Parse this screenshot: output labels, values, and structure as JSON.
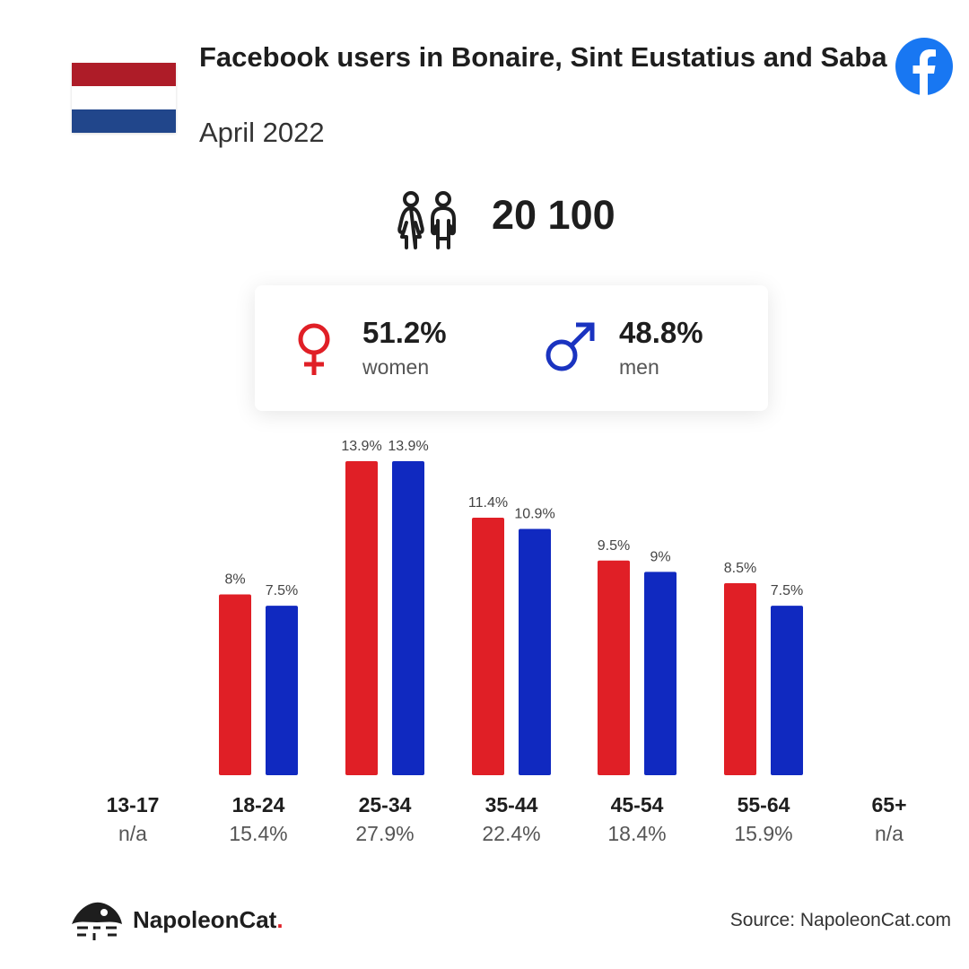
{
  "header": {
    "title": "Facebook users in Bonaire, Sint Eustatius and Saba",
    "subtitle": "April 2022",
    "flag_colors": [
      "#ae1c28",
      "#ffffff",
      "#21468b"
    ],
    "logo_icon": "facebook-icon",
    "logo_color": "#1877f2"
  },
  "total": {
    "icon": "users-icon",
    "value": "20 100"
  },
  "gender": {
    "women": {
      "icon": "female-icon",
      "percent": "51.2%",
      "label": "women",
      "color": "#e01f26"
    },
    "men": {
      "icon": "male-icon",
      "percent": "48.8%",
      "label": "men",
      "color": "#1a33c0"
    }
  },
  "chart_data": {
    "type": "bar",
    "categories": [
      "13-17",
      "18-24",
      "25-34",
      "35-44",
      "45-54",
      "55-64",
      "65+"
    ],
    "category_shares": [
      "n/a",
      "15.4%",
      "27.9%",
      "22.4%",
      "18.4%",
      "15.9%",
      "n/a"
    ],
    "series": [
      {
        "name": "women",
        "color": "#e01f26",
        "values": [
          null,
          8,
          13.9,
          11.4,
          9.5,
          8.5,
          null
        ],
        "labels": [
          "",
          "8%",
          "13.9%",
          "11.4%",
          "9.5%",
          "8.5%",
          ""
        ]
      },
      {
        "name": "men",
        "color": "#1029c0",
        "values": [
          null,
          7.5,
          13.9,
          10.9,
          9,
          7.5,
          null
        ],
        "labels": [
          "",
          "7.5%",
          "13.9%",
          "10.9%",
          "9%",
          "7.5%",
          ""
        ]
      }
    ],
    "ylim": [
      0,
      13.9
    ],
    "grid": false
  },
  "footer": {
    "brand": "NapoleonCat",
    "brand_dot": ".",
    "source": "Source: NapoleonCat.com"
  }
}
